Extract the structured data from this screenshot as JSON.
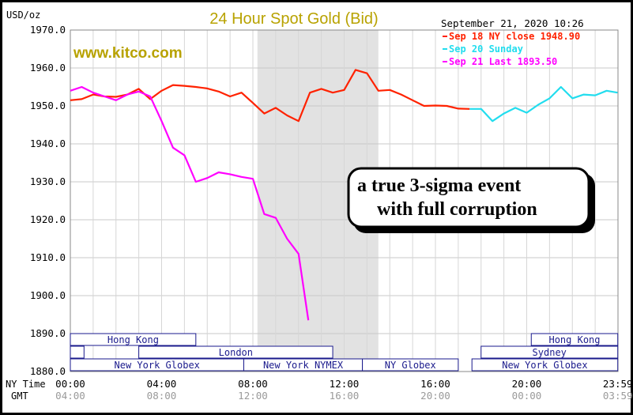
{
  "chart_data": {
    "type": "line",
    "title": "24 Hour Spot Gold (Bid)",
    "watermark": "www.kitco.com",
    "timestamp": "September 21, 2020 10:26",
    "yunit": "USD/oz",
    "ylim": [
      1880,
      1970
    ],
    "yticks": [
      "1970.0",
      "1960.0",
      "1950.0",
      "1940.0",
      "1930.0",
      "1920.0",
      "1910.0",
      "1900.0",
      "1890.0",
      "1880.0"
    ],
    "x_label_ny": "NY Time",
    "x_label_gmt": "GMT",
    "xticks_ny": [
      "00:00",
      "04:00",
      "08:00",
      "12:00",
      "16:00",
      "20:00",
      "23:59"
    ],
    "xticks_gmt": [
      "04:00",
      "08:00",
      "12:00",
      "16:00",
      "20:00",
      "00:00",
      "03:59"
    ],
    "shaded_range_hours": [
      8.2,
      13.5
    ],
    "grid": true,
    "legend_position": "top-right",
    "series": [
      {
        "name": "Sep 18 NY close 1948.90",
        "color": "#ff2200",
        "x": [
          0,
          0.5,
          1,
          1.5,
          2,
          2.5,
          3,
          3.5,
          4,
          4.5,
          5,
          5.5,
          6,
          6.5,
          7,
          7.5,
          8,
          8.5,
          9,
          9.5,
          10,
          10.5,
          11,
          11.5,
          12,
          12.5,
          13,
          13.5,
          14,
          14.5,
          15,
          15.5,
          16,
          16.5,
          17,
          17.5
        ],
        "values": [
          1951.5,
          1951.8,
          1953,
          1952.5,
          1952.4,
          1953,
          1954.5,
          1951.8,
          1954,
          1955.5,
          1955.3,
          1955,
          1954.6,
          1953.8,
          1952.5,
          1953.5,
          1950.8,
          1948,
          1949.5,
          1947.5,
          1946,
          1953.5,
          1954.5,
          1953.5,
          1954.2,
          1959.5,
          1958.6,
          1954,
          1954.2,
          1953,
          1951.5,
          1950,
          1950.1,
          1950,
          1949.3,
          1949.2
        ]
      },
      {
        "name": "Sep 20 Sunday",
        "color": "#22ddee",
        "x": [
          17.5,
          18,
          18.5,
          19,
          19.5,
          20,
          20.5,
          21,
          21.5,
          22,
          22.5,
          23,
          23.5,
          23.98
        ],
        "values": [
          1949.2,
          1949.2,
          1946,
          1948,
          1949.5,
          1948.2,
          1950.3,
          1952,
          1955,
          1952,
          1953,
          1952.8,
          1954,
          1953.5
        ]
      },
      {
        "name": "Sep 21 Last 1893.50",
        "color": "#ff00ff",
        "x": [
          0,
          0.5,
          1,
          1.5,
          2,
          2.5,
          3,
          3.5,
          4,
          4.5,
          5,
          5.5,
          6,
          6.5,
          7,
          7.5,
          8,
          8.5,
          9,
          9.5,
          10,
          10.43
        ],
        "values": [
          1954,
          1955,
          1953.5,
          1952.5,
          1951.5,
          1953,
          1953.8,
          1952.5,
          1946,
          1939,
          1937,
          1930,
          1931,
          1932.5,
          1932,
          1931.3,
          1930.8,
          1921.5,
          1920.5,
          1915,
          1911,
          1893.5
        ]
      }
    ],
    "sessions": [
      {
        "label": "Hong Kong",
        "row": 0,
        "start": 0,
        "end": 5.5
      },
      {
        "label": "",
        "row": 1,
        "start": 0,
        "end": 0.6
      },
      {
        "label": "London",
        "row": 1,
        "start": 3,
        "end": 11.5
      },
      {
        "label": "New York Globex",
        "row": 2,
        "start": 0,
        "end": 7.6
      },
      {
        "label": "New York NYMEX",
        "row": 2,
        "start": 7.6,
        "end": 12.8
      },
      {
        "label": "NY Globex",
        "row": 2,
        "start": 12.8,
        "end": 17
      },
      {
        "label": "Hong Kong",
        "row": 0,
        "start": 20.2,
        "end": 23.99
      },
      {
        "label": "Sydney",
        "row": 1,
        "start": 18,
        "end": 23.99
      },
      {
        "label": "New York Globex",
        "row": 2,
        "start": 17.6,
        "end": 23.99
      }
    ]
  },
  "annotation": {
    "line1": "a true 3-sigma event",
    "line2": "with full corruption"
  }
}
